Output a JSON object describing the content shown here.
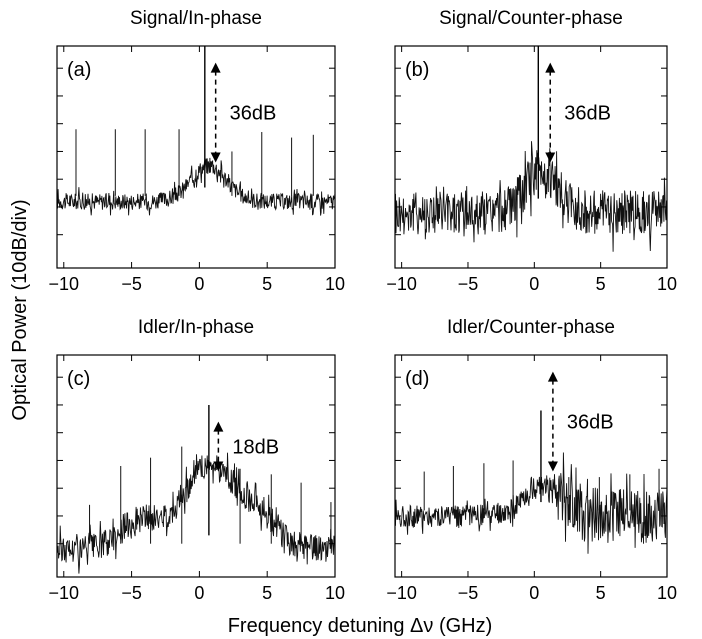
{
  "figure": {
    "ylabel": "Optical Power (10dB/div)",
    "xlabel": "Frequency detuning Δν (GHz)"
  },
  "chart_data": [
    {
      "type": "line",
      "title": "Signal/In-phase",
      "panel_label": "(a)",
      "xlim": [
        -10.5,
        10
      ],
      "ylim": [
        -82,
        -2
      ],
      "xticks": [
        -10,
        -5,
        0,
        5,
        10
      ],
      "yticks": [
        -70,
        -60,
        -50,
        -40,
        -30,
        -20,
        -10
      ],
      "grid": false,
      "annotation": {
        "text": "36dB",
        "x": 1.2,
        "y_top": -8,
        "y_bottom": -44
      },
      "main_peak": {
        "x": 0.4,
        "y": 0
      },
      "sidebands": [
        {
          "x": -9.1,
          "y": -32
        },
        {
          "x": -6.2,
          "y": -32
        },
        {
          "x": -4.0,
          "y": -32
        },
        {
          "x": -1.5,
          "y": -32
        },
        {
          "x": 2.4,
          "y": -40
        },
        {
          "x": 4.6,
          "y": -33
        },
        {
          "x": 6.8,
          "y": -35
        },
        {
          "x": 8.4,
          "y": -34
        }
      ],
      "floor": {
        "base": -58,
        "noise": 3,
        "bump": {
          "center": 0.7,
          "height": 13,
          "width": 1.3
        }
      }
    },
    {
      "type": "line",
      "title": "Signal/Counter-phase",
      "panel_label": "(b)",
      "xlim": [
        -10.5,
        10
      ],
      "ylim": [
        -82,
        -2
      ],
      "xticks": [
        -10,
        -5,
        0,
        5,
        10
      ],
      "yticks": [
        -70,
        -60,
        -50,
        -40,
        -30,
        -20,
        -10
      ],
      "grid": false,
      "annotation": {
        "text": "36dB",
        "x": 1.2,
        "y_top": -8,
        "y_bottom": -44
      },
      "main_peak": {
        "x": 0.3,
        "y": -2
      },
      "sidebands": [],
      "floor": {
        "base": -62,
        "noise": 8,
        "bump": {
          "center": 0.5,
          "height": 15,
          "width": 1.2
        }
      }
    },
    {
      "type": "line",
      "title": "Idler/In-phase",
      "panel_label": "(c)",
      "xlim": [
        -10.5,
        10
      ],
      "ylim": [
        -82,
        -2
      ],
      "xticks": [
        -10,
        -5,
        0,
        5,
        10
      ],
      "yticks": [
        -70,
        -60,
        -50,
        -40,
        -30,
        -20,
        -10
      ],
      "grid": false,
      "annotation": {
        "text": "18dB",
        "x": 1.4,
        "y_top": -26,
        "y_bottom": -44
      },
      "main_peak": {
        "x": 0.7,
        "y": -20
      },
      "sidebands": [
        {
          "x": -8.1,
          "y": -56
        },
        {
          "x": -5.8,
          "y": -42
        },
        {
          "x": -3.6,
          "y": -39
        },
        {
          "x": -1.3,
          "y": -35
        },
        {
          "x": 3.0,
          "y": -43
        },
        {
          "x": 5.3,
          "y": -45
        },
        {
          "x": 7.5,
          "y": -48
        },
        {
          "x": 9.7,
          "y": -55
        }
      ],
      "floor": {
        "base": -72,
        "noise": 5,
        "bump": {
          "center": 0.7,
          "height": 30,
          "width": 2.0
        },
        "bump2": {
          "center": -4.5,
          "height": 10,
          "width": 1.4
        },
        "bump3": {
          "center": 4.5,
          "height": 10,
          "width": 1.4
        }
      }
    },
    {
      "type": "line",
      "title": "Idler/Counter-phase",
      "panel_label": "(d)",
      "xlim": [
        -10.5,
        10
      ],
      "ylim": [
        -82,
        -2
      ],
      "xticks": [
        -10,
        -5,
        0,
        5,
        10
      ],
      "yticks": [
        -70,
        -60,
        -50,
        -40,
        -30,
        -20,
        -10
      ],
      "grid": false,
      "annotation": {
        "text": "36dB",
        "x": 1.4,
        "y_top": -8,
        "y_bottom": -44
      },
      "main_peak": {
        "x": 0.5,
        "y": -22
      },
      "sidebands": [
        {
          "x": -8.3,
          "y": -44
        },
        {
          "x": -6.1,
          "y": -42
        },
        {
          "x": -3.8,
          "y": -41
        },
        {
          "x": -1.6,
          "y": -40
        },
        {
          "x": 2.6,
          "y": -46
        },
        {
          "x": 4.9,
          "y": -46
        },
        {
          "x": 7.2,
          "y": -45
        },
        {
          "x": 9.4,
          "y": -43
        }
      ],
      "floor": {
        "base": -60,
        "noise": 4,
        "bump": {
          "center": 0.7,
          "height": 12,
          "width": 1.3
        },
        "noisy_right_from": 1.8
      }
    }
  ]
}
